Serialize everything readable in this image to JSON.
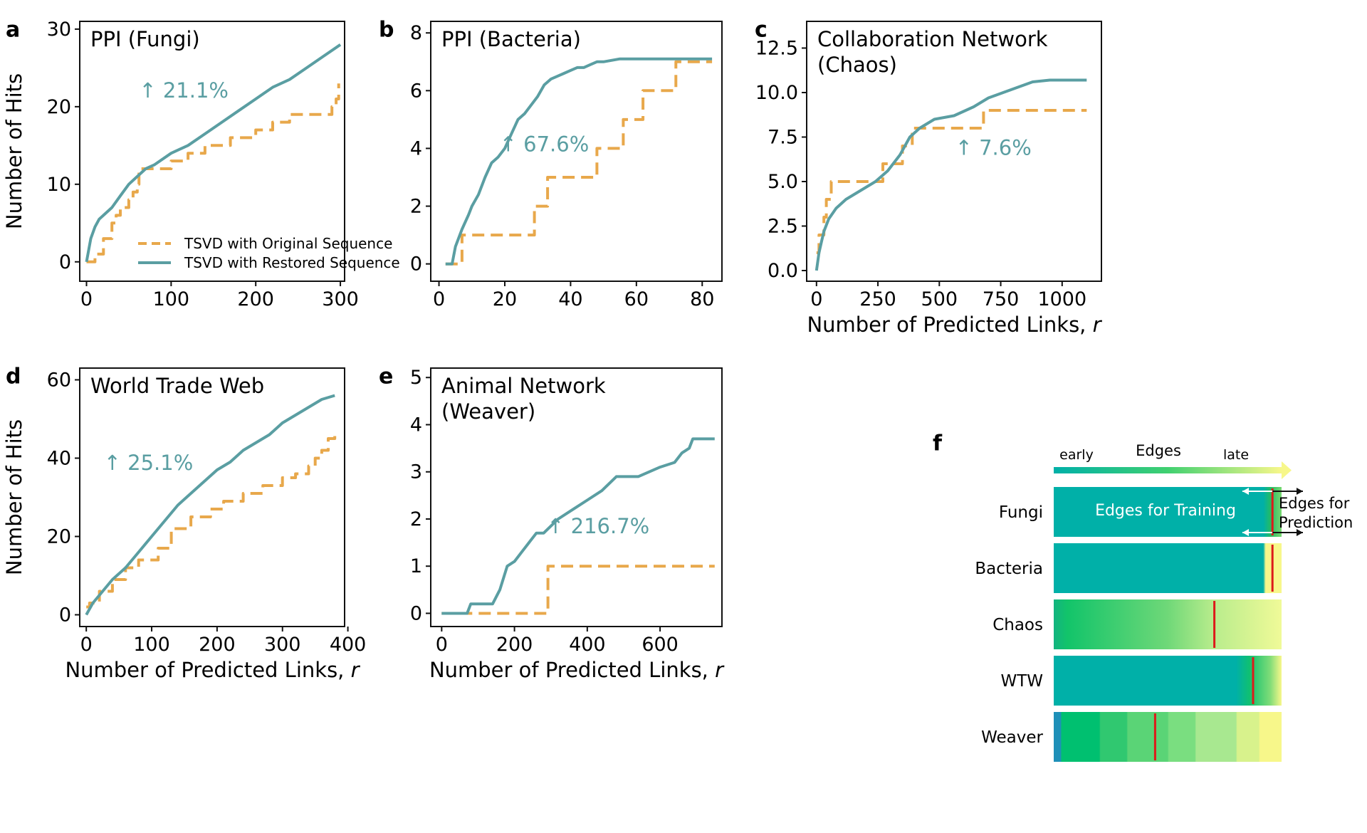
{
  "chart_data": [
    {
      "type": "line",
      "panel_letter": "a",
      "title": "PPI (Fungi)",
      "xlabel": "",
      "ylabel": "Number of Hits",
      "xlim": [
        -8,
        305
      ],
      "ylim": [
        -2.5,
        31
      ],
      "xticks": [
        0,
        100,
        200,
        300
      ],
      "yticks": [
        0,
        10,
        20,
        30
      ],
      "annotation": "↑ 21.1%",
      "annotation_at": [
        115,
        21.2
      ],
      "legend": "lower-right",
      "colors": {
        "original": "#e8a84b",
        "restored": "#5a9ea2"
      },
      "series": [
        {
          "name": "TSVD with Original Sequence",
          "style": "dashed",
          "step": true,
          "x": [
            0,
            5,
            10,
            15,
            20,
            25,
            30,
            35,
            40,
            45,
            50,
            55,
            60,
            62,
            70,
            80,
            100,
            110,
            120,
            130,
            140,
            160,
            170,
            200,
            220,
            240,
            260,
            270,
            280,
            285,
            290,
            295,
            298
          ],
          "y": [
            0,
            0,
            1,
            1,
            3,
            3,
            5,
            6,
            7,
            7,
            8,
            9,
            10,
            12,
            12,
            12,
            13,
            13,
            14,
            14,
            15,
            15,
            16,
            17,
            18,
            19,
            19,
            19,
            19,
            19,
            20,
            21,
            23
          ]
        },
        {
          "name": "TSVD with Restored Sequence",
          "style": "solid",
          "step": false,
          "x": [
            0,
            5,
            10,
            15,
            20,
            30,
            40,
            50,
            60,
            70,
            80,
            100,
            120,
            140,
            160,
            180,
            200,
            220,
            240,
            260,
            280,
            300
          ],
          "y": [
            0,
            3,
            4.5,
            5.5,
            6,
            7,
            8.5,
            10,
            11,
            12,
            12.5,
            14,
            15,
            16.5,
            18,
            19.5,
            21,
            22.5,
            23.5,
            25,
            26.5,
            28
          ]
        }
      ]
    },
    {
      "type": "line",
      "panel_letter": "b",
      "title": "PPI (Bacteria)",
      "xlabel": "",
      "ylabel": "",
      "xlim": [
        -2.5,
        86
      ],
      "ylim": [
        -0.6,
        8.4
      ],
      "xticks": [
        0,
        20,
        40,
        60,
        80
      ],
      "yticks": [
        0,
        2,
        4,
        6,
        8
      ],
      "annotation": "↑ 67.6%",
      "annotation_at": [
        32,
        3.9
      ],
      "colors": {
        "original": "#e8a84b",
        "restored": "#5a9ea2"
      },
      "series": [
        {
          "name": "TSVD with Original Sequence",
          "style": "dashed",
          "step": true,
          "x": [
            2,
            6,
            7,
            28,
            29,
            31,
            33,
            46,
            48,
            53,
            56,
            62,
            71,
            72,
            83
          ],
          "y": [
            0,
            0,
            1,
            1,
            2,
            2,
            3,
            3,
            4,
            4,
            5,
            6,
            6,
            7,
            7
          ]
        },
        {
          "name": "TSVD with Restored Sequence",
          "style": "solid",
          "step": false,
          "x": [
            2,
            4,
            5,
            7,
            9,
            10,
            12,
            14,
            16,
            18,
            20,
            22,
            24,
            26,
            28,
            30,
            32,
            34,
            36,
            38,
            40,
            42,
            44,
            46,
            48,
            50,
            55,
            60,
            70,
            83
          ],
          "y": [
            0,
            0,
            0.6,
            1.2,
            1.7,
            2,
            2.4,
            3,
            3.5,
            3.7,
            4,
            4.5,
            5,
            5.2,
            5.5,
            5.8,
            6.2,
            6.4,
            6.5,
            6.6,
            6.7,
            6.8,
            6.8,
            6.9,
            7,
            7,
            7.1,
            7.1,
            7.1,
            7.1
          ]
        }
      ]
    },
    {
      "type": "line",
      "panel_letter": "c",
      "title": "Collaboration Network (Chaos)",
      "xlabel": "Number of Predicted Links, r",
      "ylabel": "",
      "xlim": [
        -40,
        1160
      ],
      "ylim": [
        -0.6,
        14
      ],
      "xticks": [
        0,
        250,
        500,
        750,
        1000
      ],
      "yticks": [
        0.0,
        2.5,
        5.0,
        7.5,
        10.0,
        12.5
      ],
      "annotation": "↑ 7.6%",
      "annotation_at": [
        720,
        6.5
      ],
      "colors": {
        "original": "#e8a84b",
        "restored": "#5a9ea2"
      },
      "series": [
        {
          "name": "TSVD with Original Sequence",
          "style": "dashed",
          "step": true,
          "x": [
            0,
            10,
            30,
            40,
            60,
            100,
            270,
            350,
            390,
            430,
            680,
            700,
            1100
          ],
          "y": [
            1,
            2,
            3,
            4,
            5,
            5,
            6,
            7,
            8,
            8,
            9,
            9,
            9
          ]
        },
        {
          "name": "TSVD with Restored Sequence",
          "style": "solid",
          "step": false,
          "x": [
            0,
            10,
            20,
            30,
            50,
            80,
            120,
            180,
            240,
            290,
            340,
            380,
            420,
            480,
            560,
            640,
            700,
            760,
            820,
            880,
            950,
            1100
          ],
          "y": [
            0,
            1,
            1.6,
            2.2,
            2.9,
            3.5,
            4,
            4.5,
            5,
            5.6,
            6.5,
            7.5,
            8,
            8.5,
            8.7,
            9.2,
            9.7,
            10,
            10.3,
            10.6,
            10.7,
            10.7
          ]
        }
      ]
    },
    {
      "type": "line",
      "panel_letter": "d",
      "title": "World Trade Web",
      "xlabel": "Number of Predicted Links, r",
      "ylabel": "Number of Hits",
      "xlim": [
        -10,
        395
      ],
      "ylim": [
        -3,
        63
      ],
      "xticks": [
        0,
        100,
        200,
        300,
        400
      ],
      "yticks": [
        0,
        20,
        40,
        60
      ],
      "annotation": "↑ 25.1%",
      "annotation_at": [
        95,
        37
      ],
      "colors": {
        "original": "#e8a84b",
        "restored": "#5a9ea2"
      },
      "series": [
        {
          "name": "TSVD with Original Sequence",
          "style": "dashed",
          "step": true,
          "x": [
            0,
            5,
            20,
            40,
            60,
            80,
            110,
            130,
            160,
            190,
            210,
            240,
            270,
            300,
            320,
            340,
            350,
            360,
            370,
            380
          ],
          "y": [
            2,
            3,
            6,
            9,
            12,
            14,
            17,
            22,
            25,
            27,
            29,
            31,
            33,
            35,
            36,
            38,
            40,
            42,
            45,
            47
          ]
        },
        {
          "name": "TSVD with Restored Sequence",
          "style": "solid",
          "step": false,
          "x": [
            0,
            10,
            20,
            40,
            60,
            80,
            100,
            120,
            140,
            160,
            180,
            200,
            220,
            240,
            260,
            280,
            300,
            320,
            340,
            360,
            380
          ],
          "y": [
            0,
            3,
            5,
            9,
            12,
            16,
            20,
            24,
            28,
            31,
            34,
            37,
            39,
            42,
            44,
            46,
            49,
            51,
            53,
            55,
            56
          ]
        }
      ]
    },
    {
      "type": "line",
      "panel_letter": "e",
      "title": "Animal Network (Weaver)",
      "xlabel": "Number of Predicted Links, r",
      "ylabel": "",
      "xlim": [
        -30,
        770
      ],
      "ylim": [
        -0.28,
        5.2
      ],
      "xticks": [
        0,
        200,
        400,
        600
      ],
      "yticks": [
        0,
        1,
        2,
        3,
        4,
        5
      ],
      "annotation": "↑ 216.7%",
      "annotation_at": [
        430,
        1.7
      ],
      "colors": {
        "original": "#e8a84b",
        "restored": "#5a9ea2"
      },
      "series": [
        {
          "name": "TSVD with Original Sequence",
          "style": "dashed",
          "step": true,
          "x": [
            0,
            80,
            290,
            292,
            750
          ],
          "y": [
            0,
            0,
            0,
            1,
            1
          ]
        },
        {
          "name": "TSVD with Restored Sequence",
          "style": "solid",
          "step": false,
          "x": [
            0,
            70,
            80,
            140,
            160,
            180,
            200,
            220,
            240,
            260,
            280,
            320,
            360,
            400,
            440,
            480,
            540,
            600,
            640,
            660,
            680,
            690,
            700,
            750
          ],
          "y": [
            0,
            0,
            0.2,
            0.2,
            0.5,
            1,
            1.1,
            1.3,
            1.5,
            1.7,
            1.7,
            2,
            2.2,
            2.4,
            2.6,
            2.9,
            2.9,
            3.1,
            3.2,
            3.4,
            3.5,
            3.7,
            3.7,
            3.7
          ]
        }
      ]
    }
  ],
  "panel_f": {
    "letter": "f",
    "axis_label": "Edges",
    "early_label": "early",
    "late_label": "late",
    "training_label": "Edges for Training",
    "prediction_label": "Edges for Prediction",
    "rows": [
      {
        "name": "Fungi",
        "split": 0.96,
        "stops": [
          [
            0,
            "#00b0a8"
          ],
          [
            0.92,
            "#00b0a8"
          ],
          [
            0.95,
            "#22bb66"
          ],
          [
            1,
            "#78d870"
          ]
        ]
      },
      {
        "name": "Bacteria",
        "split": 0.96,
        "stops": [
          [
            0,
            "#00b0a8"
          ],
          [
            0.92,
            "#00b0a8"
          ],
          [
            0.93,
            "#f7f78a"
          ],
          [
            1,
            "#f7f78a"
          ]
        ]
      },
      {
        "name": "Chaos",
        "split": 0.705,
        "stops": [
          [
            0,
            "#12b480"
          ],
          [
            0.06,
            "#12c46a"
          ],
          [
            0.5,
            "#6fd878"
          ],
          [
            0.7,
            "#b8ec8c"
          ],
          [
            1,
            "#f0fa98"
          ]
        ]
      },
      {
        "name": "WTW",
        "split": 0.875,
        "stops": [
          [
            0,
            "#00b0a8"
          ],
          [
            0.8,
            "#00b0a8"
          ],
          [
            0.86,
            "#10c070"
          ],
          [
            0.95,
            "#80dc78"
          ],
          [
            1,
            "#f7f78a"
          ]
        ]
      },
      {
        "name": "Weaver",
        "split": 0.445,
        "stops": [
          [
            0,
            "#1e90b8"
          ],
          [
            0.03,
            "#1e90b8"
          ],
          [
            0.035,
            "#00c070"
          ],
          [
            0.2,
            "#00c070"
          ],
          [
            0.205,
            "#30c870"
          ],
          [
            0.32,
            "#30c870"
          ],
          [
            0.325,
            "#5ad476"
          ],
          [
            0.5,
            "#5ad476"
          ],
          [
            0.505,
            "#7ade80"
          ],
          [
            0.62,
            "#7ade80"
          ],
          [
            0.625,
            "#a8e890"
          ],
          [
            0.8,
            "#a8e890"
          ],
          [
            0.805,
            "#d8f28c"
          ],
          [
            0.9,
            "#d8f28c"
          ],
          [
            0.905,
            "#f7f78a"
          ],
          [
            1,
            "#f7f78a"
          ]
        ]
      }
    ]
  }
}
